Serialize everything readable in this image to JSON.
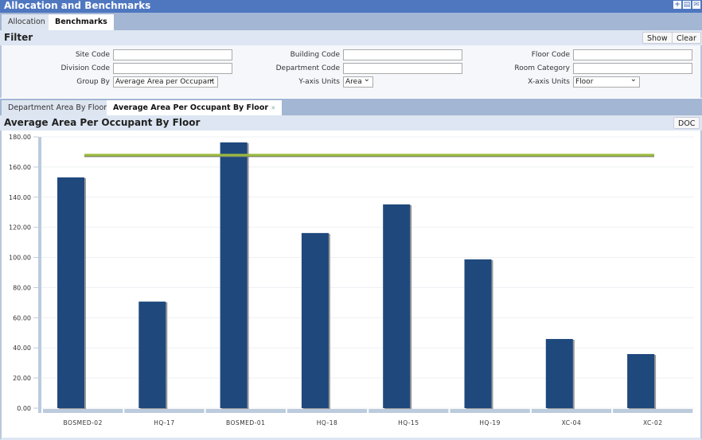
{
  "window": {
    "title": "Allocation and Benchmarks",
    "icons": [
      "add-icon",
      "print-icon",
      "email-icon"
    ]
  },
  "tabs": [
    {
      "label": "Allocation"
    },
    {
      "label": "Benchmarks",
      "active": true
    }
  ],
  "filter": {
    "title": "Filter",
    "show": "Show",
    "clear": "Clear",
    "site_code": {
      "label": "Site Code",
      "value": ""
    },
    "division_code": {
      "label": "Division Code",
      "value": ""
    },
    "group_by": {
      "label": "Group By",
      "value": "Average Area per Occupant"
    },
    "building_code": {
      "label": "Building Code",
      "value": ""
    },
    "department_code": {
      "label": "Department Code",
      "value": ""
    },
    "y_axis_units": {
      "label": "Y-axis Units",
      "value": "Area"
    },
    "floor_code": {
      "label": "Floor Code",
      "value": ""
    },
    "room_category": {
      "label": "Room Category",
      "value": ""
    },
    "x_axis_units": {
      "label": "X-axis Units",
      "value": "Floor"
    }
  },
  "subtabs": [
    {
      "label": "Department Area By Floor"
    },
    {
      "label": "Average Area Per Occupant By Floor",
      "active": true
    }
  ],
  "chart_panel": {
    "title": "Average Area Per Occupant By Floor",
    "doc": "DOC"
  },
  "chart_data": {
    "type": "bar",
    "categories": [
      "BOSMED-02",
      "HQ-17",
      "BOSMED-01",
      "HQ-18",
      "HQ-15",
      "HQ-19",
      "XC-04",
      "XC-02"
    ],
    "values": [
      153.1,
      70.7,
      176.3,
      116.2,
      135.2,
      98.7,
      45.9,
      35.9
    ],
    "benchmark_line": 167.9,
    "ylim": [
      0,
      180
    ],
    "yticks": [
      "0.00",
      "20.00",
      "40.00",
      "60.00",
      "80.00",
      "100.00",
      "120.00",
      "140.00",
      "160.00",
      "180.00"
    ],
    "grid": true,
    "bar_color": "#1f497d",
    "line_color": "#9bbb3c"
  }
}
